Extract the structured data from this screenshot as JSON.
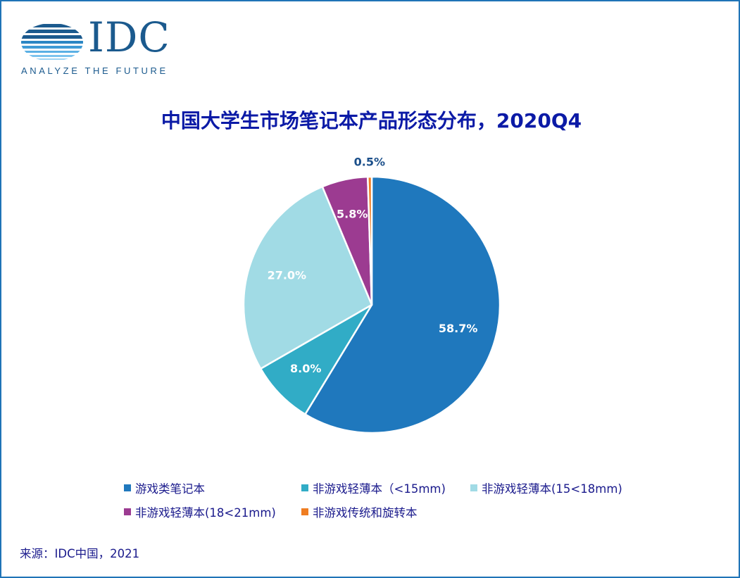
{
  "logo": {
    "wordmark": "IDC",
    "tagline": "ANALYZE THE FUTURE"
  },
  "source_note": "来源：IDC中国，2021",
  "chart_data": {
    "type": "pie",
    "title": "中国大学生市场笔记本产品形态分布，2020Q4",
    "slices": [
      {
        "label": "游戏类笔记本",
        "value": 58.7,
        "display": "58.7%",
        "color": "#1f78bd",
        "label_color": "#ffffff"
      },
      {
        "label": "非游戏轻薄本（<15mm)",
        "value": 8.0,
        "display": "8.0%",
        "color": "#31acc6",
        "label_color": "#ffffff"
      },
      {
        "label": "非游戏轻薄本(15<18mm)",
        "value": 27.0,
        "display": "27.0%",
        "color": "#a1dbe5",
        "label_color": "#ffffff"
      },
      {
        "label": "非游戏轻薄本(18<21mm)",
        "value": 5.8,
        "display": "5.8%",
        "color": "#9c3b91",
        "label_color": "#ffffff"
      },
      {
        "label": "非游戏传统和旋转本",
        "value": 0.5,
        "display": "0.5%",
        "color": "#ef7d22",
        "label_color": "#1b4f8a"
      }
    ],
    "start_angle": "12 o'clock, clockwise",
    "legend_position": "bottom"
  }
}
